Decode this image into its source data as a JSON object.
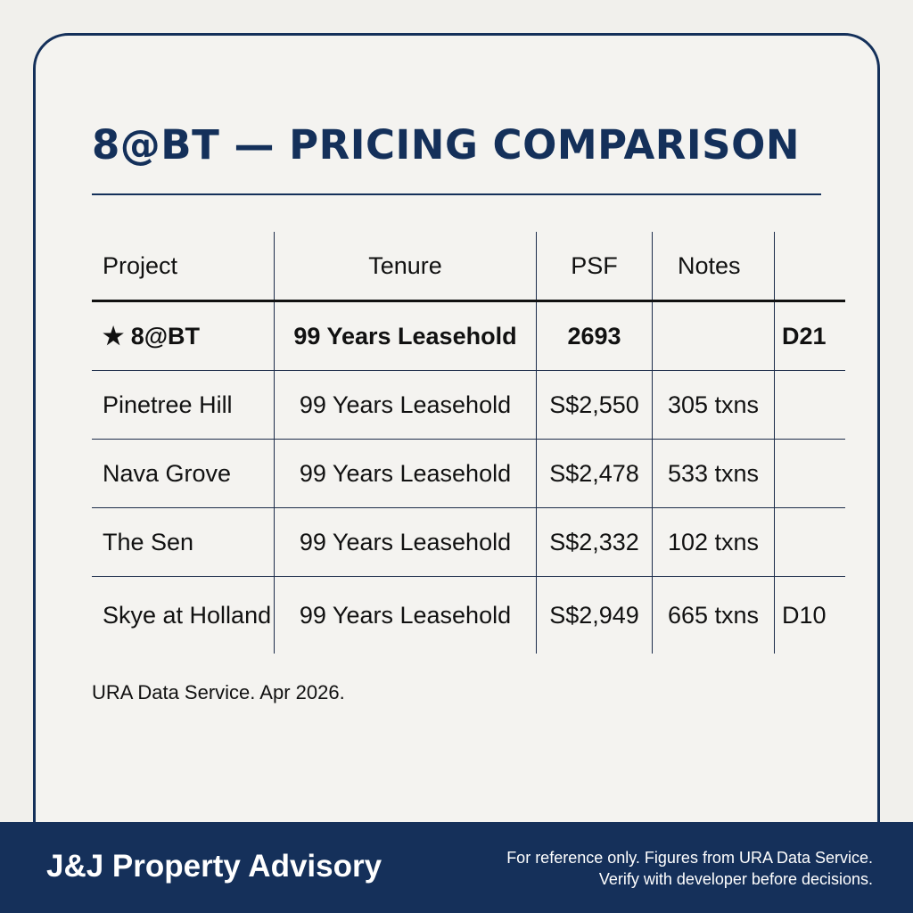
{
  "title": "8@BT — PRICING COMPARISON",
  "table": {
    "headers": [
      "Project",
      "Tenure",
      "PSF",
      "Notes",
      ""
    ],
    "rows": [
      {
        "project": "★ 8@BT",
        "tenure": "99 Years Leasehold",
        "psf": "2693",
        "notes": "",
        "district": "D21",
        "highlight": true
      },
      {
        "project": "Pinetree Hill",
        "tenure": "99 Years Leasehold",
        "psf": "S$2,550",
        "notes": "305 txns",
        "district": ""
      },
      {
        "project": "Nava Grove",
        "tenure": "99 Years Leasehold",
        "psf": "S$2,478",
        "notes": "533 txns",
        "district": ""
      },
      {
        "project": "The Sen",
        "tenure": "99 Years Leasehold",
        "psf": "S$2,332",
        "notes": "102 txns",
        "district": ""
      },
      {
        "project": "Skye at Holland",
        "tenure": "99 Years Leasehold",
        "psf": "S$2,949",
        "notes": "665 txns",
        "district": "D10"
      }
    ]
  },
  "source": "URA Data Service. Apr 2026.",
  "footer": {
    "brand": "J&J Property Advisory",
    "disclaimer_line1": "For reference only. Figures from URA Data Service.",
    "disclaimer_line2": "Verify with developer before decisions."
  },
  "colors": {
    "navy": "#15305a",
    "background": "#f1f0ec"
  }
}
